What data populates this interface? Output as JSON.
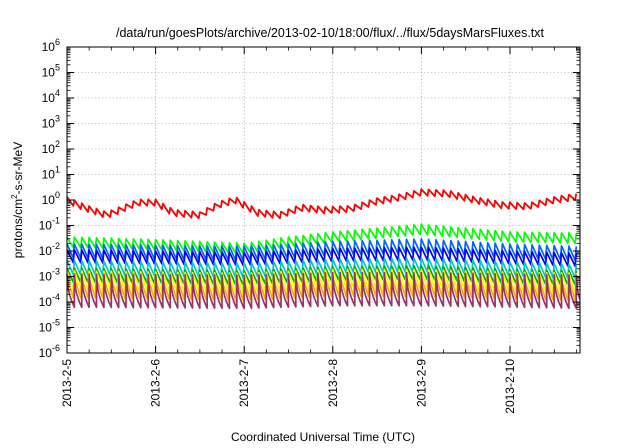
{
  "chart_data": {
    "type": "line",
    "title": "/data/run/goesPlots/archive/2013-02-10/18:00/flux/../flux/5daysMarsFluxes.txt",
    "xlabel": "Coordinated Universal Time (UTC)",
    "ylabel": {
      "pre": "protons/cm",
      "sup": "2",
      "post": "-s-sr-MeV"
    },
    "y_scale": "log",
    "y_exponent_range": [
      -6,
      6
    ],
    "y_tick_base": "10",
    "y_ticks": [
      "-6",
      "-5",
      "-4",
      "-3",
      "-2",
      "-1",
      "0",
      "1",
      "2",
      "3",
      "4",
      "5",
      "6"
    ],
    "x_range_days": [
      0,
      5.79
    ],
    "x_ticks": [
      {
        "day": 0,
        "label": "2013-2-5"
      },
      {
        "day": 1,
        "label": "2013-2-6"
      },
      {
        "day": 2,
        "label": "2013-2-7"
      },
      {
        "day": 3,
        "label": "2013-2-8"
      },
      {
        "day": 4,
        "label": "2013-2-9"
      },
      {
        "day": 5,
        "label": "2013-2-10"
      }
    ],
    "grid": true,
    "legend": "none",
    "sample_period_days": 0.0833,
    "series": [
      {
        "color": "#ff0000",
        "style": "sawtooth",
        "anchors": [
          [
            0,
            0.0
          ],
          [
            0.2,
            -0.3
          ],
          [
            0.45,
            -0.6
          ],
          [
            0.8,
            -0.1
          ],
          [
            1.0,
            -0.1
          ],
          [
            1.2,
            -0.5
          ],
          [
            1.5,
            -0.6
          ],
          [
            1.7,
            -0.2
          ],
          [
            1.9,
            0.0
          ],
          [
            2.15,
            -0.5
          ],
          [
            2.4,
            -0.6
          ],
          [
            2.65,
            -0.3
          ],
          [
            2.9,
            -0.4
          ],
          [
            3.2,
            -0.35
          ],
          [
            3.5,
            -0.05
          ],
          [
            3.75,
            0.1
          ],
          [
            4.0,
            0.3
          ],
          [
            4.3,
            0.25
          ],
          [
            4.6,
            0.0
          ],
          [
            4.9,
            -0.2
          ],
          [
            5.2,
            -0.25
          ],
          [
            5.5,
            0.0
          ],
          [
            5.79,
            0.15
          ]
        ],
        "amplitude_dex": 0.25
      },
      {
        "color": "#00ff00",
        "style": "sawtooth",
        "anchors": [
          [
            0,
            -1.65
          ],
          [
            1.0,
            -1.75
          ],
          [
            2.0,
            -1.9
          ],
          [
            2.5,
            -1.65
          ],
          [
            3.0,
            -1.45
          ],
          [
            3.5,
            -1.3
          ],
          [
            4.0,
            -1.15
          ],
          [
            4.5,
            -1.3
          ],
          [
            5.0,
            -1.45
          ],
          [
            5.79,
            -1.5
          ]
        ],
        "amplitude_dex": 0.4
      },
      {
        "color": "#0066ff",
        "style": "sawtooth",
        "anchors": [
          [
            0,
            -2.0
          ],
          [
            2.0,
            -2.1
          ],
          [
            3.0,
            -1.9
          ],
          [
            4.0,
            -1.8
          ],
          [
            5.0,
            -2.0
          ],
          [
            5.79,
            -2.1
          ]
        ],
        "amplitude_dex": 0.55
      },
      {
        "color": "#0000ff",
        "style": "sawtooth",
        "anchors": [
          [
            0,
            -2.2
          ],
          [
            2.0,
            -2.3
          ],
          [
            3.0,
            -2.15
          ],
          [
            4.0,
            -2.1
          ],
          [
            5.0,
            -2.25
          ],
          [
            5.79,
            -2.35
          ]
        ],
        "amplitude_dex": 0.5
      },
      {
        "color": "#00c8c8",
        "style": "sawtooth",
        "anchors": [
          [
            0,
            -2.65
          ],
          [
            2.0,
            -2.75
          ],
          [
            3.0,
            -2.6
          ],
          [
            4.0,
            -2.55
          ],
          [
            5.0,
            -2.7
          ],
          [
            5.79,
            -2.8
          ]
        ],
        "amplitude_dex": 0.55
      },
      {
        "color": "#00aa00",
        "style": "sawtooth",
        "anchors": [
          [
            0,
            -2.95
          ],
          [
            2.0,
            -3.05
          ],
          [
            3.0,
            -2.9
          ],
          [
            4.0,
            -2.85
          ],
          [
            5.0,
            -3.0
          ],
          [
            5.79,
            -3.05
          ]
        ],
        "amplitude_dex": 0.55
      },
      {
        "color": "#ffff00",
        "style": "sawtooth",
        "anchors": [
          [
            0,
            -3.15
          ],
          [
            2.0,
            -3.25
          ],
          [
            3.0,
            -3.1
          ],
          [
            4.0,
            -3.1
          ],
          [
            5.0,
            -3.2
          ],
          [
            5.79,
            -3.25
          ]
        ],
        "amplitude_dex": 0.75
      },
      {
        "color": "#ffaa00",
        "style": "sawtooth",
        "anchors": [
          [
            0,
            -3.45
          ],
          [
            2.0,
            -3.55
          ],
          [
            3.0,
            -3.4
          ],
          [
            4.0,
            -3.4
          ],
          [
            5.0,
            -3.5
          ],
          [
            5.79,
            -3.55
          ]
        ],
        "amplitude_dex": 0.75
      },
      {
        "color": "#993366",
        "style": "cusp",
        "anchors": [
          [
            0,
            -3.55
          ],
          [
            2.0,
            -3.6
          ],
          [
            3.0,
            -3.5
          ],
          [
            4.0,
            -3.5
          ],
          [
            5.0,
            -3.55
          ],
          [
            5.79,
            -3.6
          ]
        ],
        "amplitude_dex": 1.3
      }
    ]
  }
}
